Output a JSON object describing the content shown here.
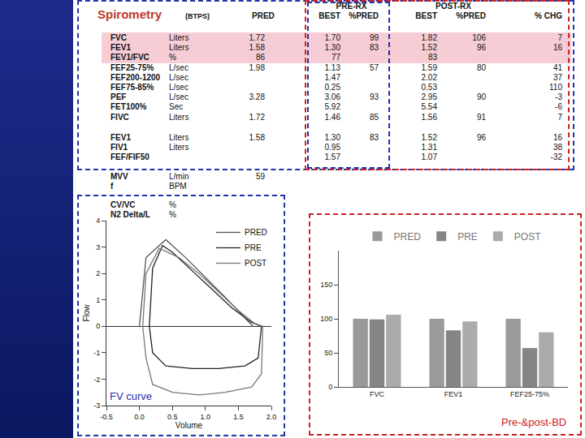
{
  "table": {
    "header": {
      "title": "Spirometry",
      "subtitle": "(BTPS)",
      "column_groups": [
        "PRE-RX",
        "POST-RX"
      ],
      "columns": [
        null,
        null,
        "PRED",
        "BEST",
        "%PRED",
        "BEST",
        "%PRED",
        "% CHG"
      ]
    },
    "groups": [
      [
        [
          "FVC",
          "Liters",
          "1.72",
          "1.70",
          "99",
          "1.82",
          "106",
          "7"
        ],
        [
          "FEV1",
          "Liters",
          "1.58",
          "1.30",
          "83",
          "1.52",
          "96",
          "16"
        ],
        [
          "FEV1/FVC",
          "%",
          "86",
          "77",
          null,
          "83",
          null,
          null
        ],
        [
          "FEF25-75%",
          "L/sec",
          "1.98",
          "1.13",
          "57",
          "1.59",
          "80",
          "41"
        ],
        [
          "FEF200-1200",
          "L/sec",
          null,
          "1.47",
          null,
          "2.02",
          null,
          "37"
        ],
        [
          "FEF75-85%",
          "L/sec",
          null,
          "0.25",
          null,
          "0.53",
          null,
          "110"
        ],
        [
          "PEF",
          "L/sec",
          "3.28",
          "3.06",
          "93",
          "2.95",
          "90",
          "-3"
        ],
        [
          "FET100%",
          "Sec",
          null,
          "5.92",
          null,
          "5.54",
          null,
          "-6"
        ],
        [
          "FIVC",
          "Liters",
          "1.72",
          "1.46",
          "85",
          "1.56",
          "91",
          "7"
        ]
      ],
      [
        [
          "FEV1",
          "Liters",
          "1.58",
          "1.30",
          "83",
          "1.52",
          "96",
          "16"
        ],
        [
          "FIV1",
          "Liters",
          null,
          "0.95",
          null,
          "1.31",
          null,
          "38"
        ],
        [
          "FEF/FIF50",
          null,
          null,
          "1.57",
          null,
          "1.07",
          null,
          "-32"
        ]
      ],
      [
        [
          "MVV",
          "L/min",
          "59",
          null,
          null,
          null,
          null,
          null
        ],
        [
          "f",
          "BPM",
          null,
          null,
          null,
          null,
          null,
          null
        ]
      ],
      [
        [
          "CV/VC",
          "%",
          null,
          null,
          null,
          null,
          null,
          null
        ],
        [
          "N2 Delta/L",
          "%",
          null,
          null,
          null,
          null,
          null,
          null
        ]
      ]
    ]
  },
  "chart_data": [
    {
      "type": "line",
      "xlabel": "Volume",
      "ylabel": "Flow",
      "annotations": [
        "FV curve"
      ],
      "legend": "top right",
      "grid": false,
      "xlim": [
        -0.5,
        2.0
      ],
      "xticks": [
        -0.5,
        {
          "value": 0,
          "label": "0.0"
        },
        0.5,
        {
          "value": 1,
          "label": "1.0"
        },
        1.5,
        {
          "value": 2,
          "label": "2.0"
        }
      ],
      "ylim": [
        -3,
        4
      ],
      "yticks": [
        -3,
        -2,
        -1,
        0,
        1,
        2,
        3,
        4
      ],
      "series": [
        {
          "name": "PRED",
          "color": "#555555",
          "x": [
            0.0,
            0.1,
            0.4,
            0.7,
            1.0,
            1.3,
            1.72
          ],
          "values": [
            0,
            2.6,
            3.28,
            2.6,
            1.85,
            1.1,
            0
          ]
        },
        {
          "name": "PRE",
          "color": "#222222",
          "x": [
            0.15,
            0.2,
            0.35,
            0.5,
            0.8,
            1.1,
            1.4,
            1.7,
            1.85,
            1.8,
            1.6,
            1.2,
            0.8,
            0.4,
            0.2,
            0.15
          ],
          "values": [
            0,
            2.2,
            3.06,
            2.8,
            2.1,
            1.4,
            0.7,
            0.15,
            0,
            -1.2,
            -1.5,
            -1.6,
            -1.6,
            -1.5,
            -1.0,
            0
          ]
        },
        {
          "name": "POST",
          "color": "#777777",
          "x": [
            0.05,
            0.1,
            0.3,
            0.6,
            0.9,
            1.2,
            1.5,
            1.75,
            1.87,
            1.85,
            1.7,
            1.3,
            0.9,
            0.5,
            0.2,
            0.1,
            0.05
          ],
          "values": [
            0,
            2.0,
            2.95,
            2.6,
            2.0,
            1.3,
            0.6,
            0.1,
            0,
            -1.8,
            -2.3,
            -2.5,
            -2.6,
            -2.5,
            -2.2,
            -1.2,
            0
          ]
        }
      ]
    },
    {
      "type": "bar",
      "categories": [
        "FVC",
        "FEV1",
        "FEF25-75%"
      ],
      "annotations": [
        "Pre-&post-BD"
      ],
      "legend": "top",
      "grid": false,
      "ylim": [
        0,
        200
      ],
      "yticks": [
        0,
        50,
        100,
        150
      ],
      "series": [
        {
          "name": "PRED",
          "color": "#9a9a9a",
          "values": [
            100,
            100,
            100
          ]
        },
        {
          "name": "PRE",
          "color": "#858585",
          "values": [
            99,
            83,
            57
          ]
        },
        {
          "name": "POST",
          "color": "#ababab",
          "values": [
            106,
            96,
            80
          ]
        }
      ]
    }
  ]
}
